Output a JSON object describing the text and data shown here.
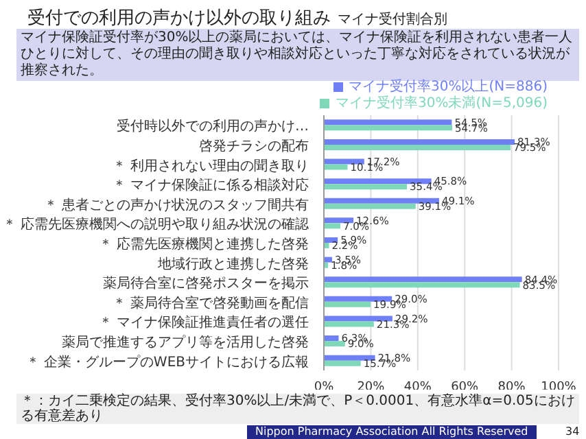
{
  "chart_data": {
    "type": "bar",
    "orientation": "horizontal",
    "title": "受付での利用の声かけ以外の取り組み",
    "subtitle": "マイナ受付割合別",
    "categories": [
      "受付時以外での利用の声かけ…",
      "啓発チラシの配布",
      "＊ 利用されない理由の聞き取り",
      "＊ マイナ保険証に係る相談対応",
      "＊ 患者ごとの声かけ状況のスタッフ間共有",
      "＊ 応需先医療機関への説明や取り組み状況の確認",
      "＊ 応需先医療機関と連携した啓発",
      "地域行政と連携した啓発",
      "薬局待合室に啓発ポスターを掲示",
      "＊ 薬局待合室で啓発動画を配信",
      "＊ マイナ保険証推進責任者の選任",
      "薬局で推進するアプリ等を活用した啓発",
      "＊ 企業・グループのWEBサイトにおける広報"
    ],
    "series": [
      {
        "name": "マイナ受付率30%以上(N=886)",
        "color": "#6f7ff5",
        "values": [
          54.5,
          81.3,
          17.2,
          45.8,
          49.1,
          12.6,
          5.9,
          3.5,
          84.4,
          29.0,
          29.2,
          6.3,
          21.8
        ],
        "value_labels": [
          "54.5%",
          "81.3%",
          "17.2%",
          "45.8%",
          "49.1%",
          "12.6%",
          "5.9%",
          "3.5%",
          "84.4%",
          "29.0%",
          "29.2%",
          "6.3%",
          "21.8%"
        ]
      },
      {
        "name": "マイナ受付率30%未満(N=5,096)",
        "color": "#7fd8b8",
        "values": [
          54.7,
          79.5,
          10.1,
          35.4,
          39.1,
          7.0,
          2.2,
          1.8,
          83.5,
          19.9,
          21.3,
          9.0,
          15.7
        ],
        "value_labels": [
          "54.7%",
          "79.5%",
          "10.1%",
          "35.4%",
          "39.1%",
          "7.0%",
          "2.2%",
          "1.8%",
          "83.5%",
          "19.9%",
          "21.3%",
          "9.0%",
          "15.7%"
        ]
      }
    ],
    "xlim": [
      0,
      100
    ],
    "xticks": [
      {
        "value": 0,
        "label": "0%"
      },
      {
        "value": 20,
        "label": "20%"
      },
      {
        "value": 40,
        "label": "40%"
      },
      {
        "value": 60,
        "label": "60%"
      },
      {
        "value": 80,
        "label": "80%"
      },
      {
        "value": 100,
        "label": "100%"
      }
    ],
    "grid": "x",
    "legend": "top right",
    "annotations": [
      "マイナ保険証受付率が30%以上の薬局においては、マイナ保険証を利用されない患者一人ひとりに対して、その理由の聞き取りや相談対応といった丁寧な対応をされている状況が推察された。",
      "＊：カイ二乗検定の結果、受付率30%以上/未満で、P＜0.0001、有意水準α=0.05における有意差あり",
      "Nippon Pharmacy Association All Rights Reserved",
      "34"
    ]
  }
}
